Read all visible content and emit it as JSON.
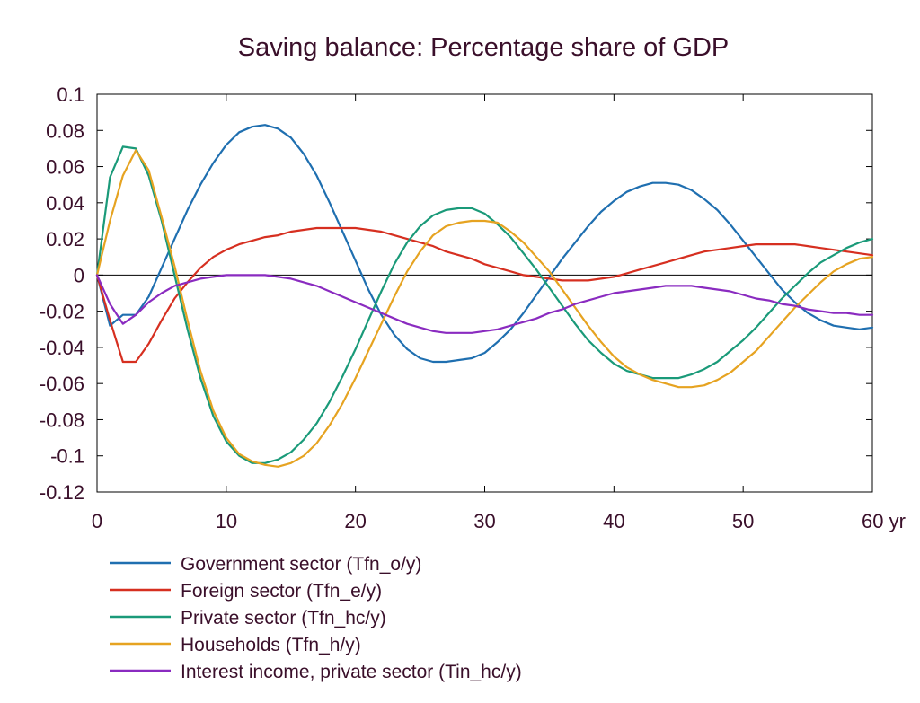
{
  "chart_data": {
    "type": "line",
    "title": "Saving balance: Percentage share of GDP",
    "xlabel": "",
    "ylabel": "",
    "xlim": [
      0,
      60
    ],
    "ylim": [
      -0.12,
      0.1
    ],
    "x_ticks": [
      0,
      10,
      20,
      30,
      40,
      50,
      60
    ],
    "x_tick_labels": [
      "0",
      "10",
      "20",
      "30",
      "40",
      "50",
      "60 yr"
    ],
    "y_ticks": [
      0.1,
      0.08,
      0.06,
      0.04,
      0.02,
      0,
      -0.02,
      -0.04,
      -0.06,
      -0.08,
      -0.1,
      -0.12
    ],
    "y_tick_labels": [
      "0.1",
      "0.08",
      "0.06",
      "0.04",
      "0.02",
      "0",
      "-0.02",
      "-0.04",
      "-0.06",
      "-0.08",
      "-0.1",
      "-0.12"
    ],
    "grid": false,
    "zero_line": true,
    "legend_position": "bottom",
    "x": [
      0,
      1,
      2,
      3,
      4,
      5,
      6,
      7,
      8,
      9,
      10,
      11,
      12,
      13,
      14,
      15,
      16,
      17,
      18,
      19,
      20,
      21,
      22,
      23,
      24,
      25,
      26,
      27,
      28,
      29,
      30,
      31,
      32,
      33,
      34,
      35,
      36,
      37,
      38,
      39,
      40,
      41,
      42,
      43,
      44,
      45,
      46,
      47,
      48,
      49,
      50,
      51,
      52,
      53,
      54,
      55,
      56,
      57,
      58,
      59,
      60
    ],
    "series": [
      {
        "name": "Government sector (Tfn_o/y)",
        "color": "#1f6fb0",
        "values": [
          0,
          -0.028,
          -0.022,
          -0.022,
          -0.012,
          0.004,
          0.02,
          0.036,
          0.05,
          0.062,
          0.072,
          0.079,
          0.082,
          0.083,
          0.081,
          0.076,
          0.067,
          0.055,
          0.04,
          0.024,
          0.008,
          -0.008,
          -0.022,
          -0.033,
          -0.041,
          -0.046,
          -0.048,
          -0.048,
          -0.047,
          -0.046,
          -0.043,
          -0.037,
          -0.03,
          -0.021,
          -0.011,
          -0.001,
          0.009,
          0.018,
          0.027,
          0.035,
          0.041,
          0.046,
          0.049,
          0.051,
          0.051,
          0.05,
          0.047,
          0.042,
          0.036,
          0.028,
          0.019,
          0.01,
          0.001,
          -0.008,
          -0.015,
          -0.021,
          -0.025,
          -0.028,
          -0.029,
          -0.03,
          -0.029
        ]
      },
      {
        "name": "Foreign sector (Tfn_e/y)",
        "color": "#d62f20",
        "values": [
          0,
          -0.025,
          -0.048,
          -0.048,
          -0.038,
          -0.025,
          -0.013,
          -0.004,
          0.004,
          0.01,
          0.014,
          0.017,
          0.019,
          0.021,
          0.022,
          0.024,
          0.025,
          0.026,
          0.026,
          0.026,
          0.026,
          0.025,
          0.024,
          0.022,
          0.02,
          0.018,
          0.016,
          0.013,
          0.011,
          0.009,
          0.006,
          0.004,
          0.002,
          0.0,
          -0.001,
          -0.002,
          -0.003,
          -0.003,
          -0.003,
          -0.002,
          -0.001,
          0.001,
          0.003,
          0.005,
          0.007,
          0.009,
          0.011,
          0.013,
          0.014,
          0.015,
          0.016,
          0.017,
          0.017,
          0.017,
          0.017,
          0.016,
          0.015,
          0.014,
          0.013,
          0.012,
          0.011
        ]
      },
      {
        "name": "Private sector (Tfn_hc/y)",
        "color": "#1a9a79",
        "values": [
          0,
          0.054,
          0.071,
          0.07,
          0.055,
          0.03,
          0.0,
          -0.03,
          -0.057,
          -0.078,
          -0.092,
          -0.1,
          -0.104,
          -0.104,
          -0.102,
          -0.098,
          -0.091,
          -0.082,
          -0.07,
          -0.056,
          -0.041,
          -0.025,
          -0.009,
          0.006,
          0.018,
          0.027,
          0.033,
          0.036,
          0.037,
          0.037,
          0.034,
          0.028,
          0.021,
          0.012,
          0.003,
          -0.007,
          -0.017,
          -0.027,
          -0.036,
          -0.043,
          -0.049,
          -0.053,
          -0.055,
          -0.057,
          -0.057,
          -0.057,
          -0.055,
          -0.052,
          -0.048,
          -0.042,
          -0.036,
          -0.029,
          -0.021,
          -0.013,
          -0.006,
          0.001,
          0.007,
          0.011,
          0.015,
          0.018,
          0.02
        ]
      },
      {
        "name": "Households (Tfn_h/y)",
        "color": "#e6a321",
        "values": [
          0,
          0.03,
          0.055,
          0.069,
          0.058,
          0.032,
          0.005,
          -0.025,
          -0.053,
          -0.075,
          -0.09,
          -0.099,
          -0.103,
          -0.105,
          -0.106,
          -0.104,
          -0.1,
          -0.093,
          -0.083,
          -0.071,
          -0.057,
          -0.042,
          -0.027,
          -0.012,
          0.002,
          0.013,
          0.022,
          0.027,
          0.029,
          0.03,
          0.03,
          0.029,
          0.024,
          0.018,
          0.01,
          0.002,
          -0.008,
          -0.018,
          -0.028,
          -0.037,
          -0.045,
          -0.051,
          -0.055,
          -0.058,
          -0.06,
          -0.062,
          -0.062,
          -0.061,
          -0.058,
          -0.054,
          -0.048,
          -0.042,
          -0.034,
          -0.026,
          -0.018,
          -0.011,
          -0.004,
          0.002,
          0.006,
          0.009,
          0.01
        ]
      },
      {
        "name": "Interest income, private sector (Tin_hc/y)",
        "color": "#8a2bc0",
        "values": [
          0,
          -0.016,
          -0.027,
          -0.022,
          -0.015,
          -0.01,
          -0.006,
          -0.004,
          -0.002,
          -0.001,
          0.0,
          0.0,
          0.0,
          0.0,
          -0.001,
          -0.002,
          -0.004,
          -0.006,
          -0.009,
          -0.012,
          -0.015,
          -0.018,
          -0.021,
          -0.024,
          -0.027,
          -0.029,
          -0.031,
          -0.032,
          -0.032,
          -0.032,
          -0.031,
          -0.03,
          -0.028,
          -0.026,
          -0.024,
          -0.021,
          -0.019,
          -0.016,
          -0.014,
          -0.012,
          -0.01,
          -0.009,
          -0.008,
          -0.007,
          -0.006,
          -0.006,
          -0.006,
          -0.007,
          -0.008,
          -0.009,
          -0.011,
          -0.013,
          -0.014,
          -0.016,
          -0.017,
          -0.019,
          -0.02,
          -0.021,
          -0.021,
          -0.022,
          -0.022
        ]
      }
    ]
  }
}
